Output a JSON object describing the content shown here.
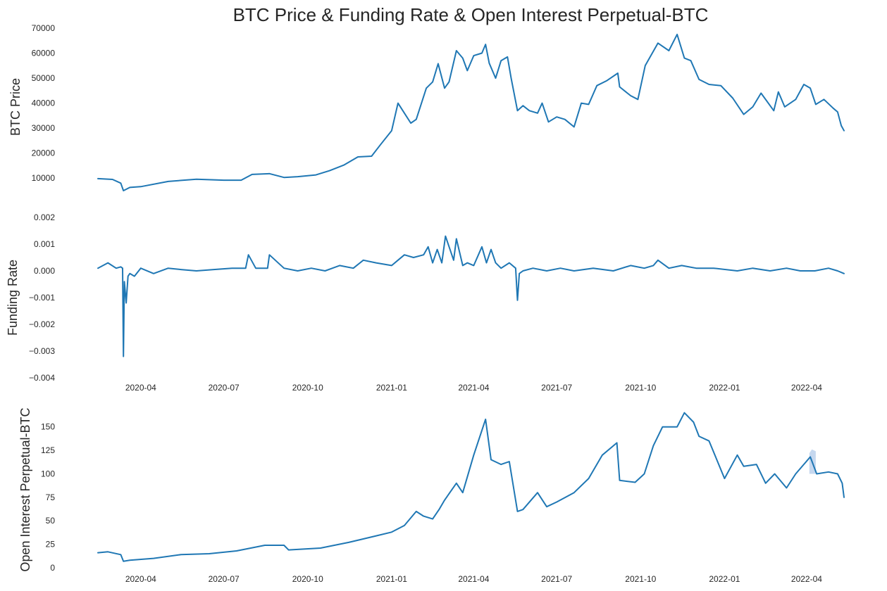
{
  "title": "BTC Price & Funding Rate & Open Interest Perpetual-BTC",
  "colors": {
    "line": "#1f77b4",
    "band": "#aec7e8",
    "text": "#262626",
    "background": "#ffffff"
  },
  "x_axis": {
    "range": [
      "2020-02-14",
      "2022-05-12"
    ],
    "ticks": [
      "2020-04",
      "2020-07",
      "2020-10",
      "2021-01",
      "2021-04",
      "2021-07",
      "2021-10",
      "2022-01",
      "2022-04"
    ]
  },
  "chart_data": [
    {
      "type": "line",
      "ylabel": "BTC  Price",
      "xlabel": "",
      "ylim": [
        5000,
        70000
      ],
      "yticks": [
        "10000",
        "20000",
        "30000",
        "40000",
        "50000",
        "60000",
        "70000"
      ],
      "show_x_ticks": false,
      "grid": false,
      "series": [
        {
          "x": [
            "2020-02-14",
            "2020-03-01",
            "2020-03-10",
            "2020-03-13",
            "2020-03-20",
            "2020-04-01",
            "2020-05-01",
            "2020-06-01",
            "2020-07-01",
            "2020-07-20",
            "2020-08-01",
            "2020-08-20",
            "2020-09-05",
            "2020-09-20",
            "2020-10-10",
            "2020-10-25",
            "2020-11-10",
            "2020-11-25",
            "2020-12-10",
            "2020-12-20",
            "2021-01-01",
            "2021-01-08",
            "2021-01-15",
            "2021-01-22",
            "2021-01-28",
            "2021-02-08",
            "2021-02-15",
            "2021-02-21",
            "2021-02-28",
            "2021-03-05",
            "2021-03-13",
            "2021-03-20",
            "2021-03-25",
            "2021-04-01",
            "2021-04-10",
            "2021-04-14",
            "2021-04-18",
            "2021-04-25",
            "2021-05-01",
            "2021-05-08",
            "2021-05-12",
            "2021-05-19",
            "2021-05-25",
            "2021-06-01",
            "2021-06-10",
            "2021-06-15",
            "2021-06-22",
            "2021-07-01",
            "2021-07-10",
            "2021-07-20",
            "2021-07-28",
            "2021-08-05",
            "2021-08-14",
            "2021-08-25",
            "2021-09-06",
            "2021-09-08",
            "2021-09-20",
            "2021-09-28",
            "2021-10-06",
            "2021-10-20",
            "2021-11-01",
            "2021-11-10",
            "2021-11-18",
            "2021-11-25",
            "2021-12-04",
            "2021-12-15",
            "2021-12-28",
            "2022-01-10",
            "2022-01-22",
            "2022-02-01",
            "2022-02-10",
            "2022-02-24",
            "2022-03-01",
            "2022-03-08",
            "2022-03-20",
            "2022-03-29",
            "2022-04-05",
            "2022-04-11",
            "2022-04-20",
            "2022-04-30",
            "2022-05-05",
            "2022-05-09",
            "2022-05-12"
          ],
          "y": [
            9800,
            9500,
            8000,
            5000,
            6300,
            6600,
            8700,
            9600,
            9200,
            9200,
            11500,
            11800,
            10300,
            10600,
            11300,
            13000,
            15300,
            18500,
            18800,
            23500,
            29000,
            40000,
            36000,
            32000,
            33500,
            46000,
            48500,
            55800,
            46000,
            48500,
            61000,
            58000,
            53000,
            59000,
            60000,
            63500,
            56000,
            50000,
            57000,
            58500,
            50000,
            37000,
            39000,
            37000,
            36000,
            40000,
            32500,
            34500,
            33500,
            30500,
            40000,
            39500,
            47000,
            49000,
            52000,
            46500,
            43000,
            41500,
            55000,
            64000,
            61000,
            67500,
            58000,
            57000,
            49500,
            47500,
            47000,
            42000,
            35500,
            38500,
            44000,
            37000,
            44500,
            38500,
            41500,
            47500,
            46000,
            39500,
            41500,
            38000,
            36500,
            31000,
            29000
          ]
        }
      ]
    },
    {
      "type": "line",
      "ylabel": "Funding Rate",
      "xlabel": "",
      "ylim": [
        -0.004,
        0.002
      ],
      "yticks": [
        "−0.004",
        "−0.003",
        "−0.002",
        "−0.001",
        "0.000",
        "0.001",
        "0.002"
      ],
      "show_x_ticks": true,
      "grid": false,
      "series": [
        {
          "x": [
            "2020-02-14",
            "2020-02-25",
            "2020-03-05",
            "2020-03-10",
            "2020-03-12",
            "2020-03-13",
            "2020-03-14",
            "2020-03-16",
            "2020-03-18",
            "2020-03-20",
            "2020-03-25",
            "2020-04-01",
            "2020-04-15",
            "2020-05-01",
            "2020-05-15",
            "2020-06-01",
            "2020-06-20",
            "2020-07-10",
            "2020-07-25",
            "2020-07-28",
            "2020-08-05",
            "2020-08-18",
            "2020-08-20",
            "2020-09-05",
            "2020-09-20",
            "2020-10-05",
            "2020-10-20",
            "2020-11-05",
            "2020-11-20",
            "2020-12-01",
            "2020-12-15",
            "2021-01-01",
            "2021-01-08",
            "2021-01-15",
            "2021-01-25",
            "2021-02-05",
            "2021-02-10",
            "2021-02-15",
            "2021-02-20",
            "2021-02-25",
            "2021-03-01",
            "2021-03-10",
            "2021-03-13",
            "2021-03-20",
            "2021-03-25",
            "2021-04-01",
            "2021-04-10",
            "2021-04-15",
            "2021-04-20",
            "2021-04-25",
            "2021-05-01",
            "2021-05-10",
            "2021-05-17",
            "2021-05-19",
            "2021-05-21",
            "2021-05-25",
            "2021-06-05",
            "2021-06-20",
            "2021-07-05",
            "2021-07-20",
            "2021-08-10",
            "2021-09-01",
            "2021-09-20",
            "2021-10-05",
            "2021-10-15",
            "2021-10-20",
            "2021-11-01",
            "2021-11-15",
            "2021-12-01",
            "2021-12-20",
            "2022-01-15",
            "2022-02-01",
            "2022-02-20",
            "2022-03-10",
            "2022-03-25",
            "2022-04-10",
            "2022-04-25",
            "2022-05-05",
            "2022-05-12"
          ],
          "y": [
            0.0001,
            0.0003,
            0.0001,
            0.00015,
            0.0001,
            -0.0032,
            -0.0004,
            -0.0012,
            -0.0002,
            -0.0001,
            -0.0002,
            0.0001,
            -0.0001,
            0.0001,
            5e-05,
            0.0,
            5e-05,
            0.0001,
            0.0001,
            0.0006,
            0.0001,
            0.0001,
            0.0006,
            0.0001,
            0.0,
            0.0001,
            0.0,
            0.0002,
            0.0001,
            0.0004,
            0.0003,
            0.0002,
            0.0004,
            0.0006,
            0.0005,
            0.0006,
            0.0009,
            0.0003,
            0.0008,
            0.0003,
            0.0013,
            0.0004,
            0.0012,
            0.0002,
            0.0003,
            0.0002,
            0.0009,
            0.0003,
            0.0008,
            0.0003,
            0.0001,
            0.0003,
            0.0001,
            -0.0011,
            -0.0001,
            0.0,
            0.0001,
            0.0,
            0.0001,
            0.0,
            0.0001,
            0.0,
            0.0002,
            0.0001,
            0.0002,
            0.0004,
            0.0001,
            0.0002,
            0.0001,
            0.0001,
            0.0,
            0.0001,
            0.0,
            0.0001,
            0.0,
            0.0,
            0.0001,
            0.0,
            -0.0001
          ]
        }
      ]
    },
    {
      "type": "line",
      "ylabel": "Open Interest Perpetual-BTC",
      "xlabel": "",
      "ylim": [
        0,
        170
      ],
      "yticks": [
        "0",
        "25",
        "50",
        "75",
        "100",
        "125",
        "150"
      ],
      "show_x_ticks": true,
      "grid": false,
      "band": {
        "from": "2022-04-04",
        "to": "2022-04-11",
        "low": 100,
        "high": 126
      },
      "series": [
        {
          "x": [
            "2020-02-14",
            "2020-02-25",
            "2020-03-10",
            "2020-03-13",
            "2020-03-20",
            "2020-04-15",
            "2020-05-15",
            "2020-06-15",
            "2020-07-15",
            "2020-08-15",
            "2020-09-05",
            "2020-09-10",
            "2020-10-15",
            "2020-11-15",
            "2020-12-15",
            "2021-01-01",
            "2021-01-15",
            "2021-01-28",
            "2021-02-05",
            "2021-02-15",
            "2021-02-22",
            "2021-02-28",
            "2021-03-13",
            "2021-03-20",
            "2021-04-01",
            "2021-04-14",
            "2021-04-20",
            "2021-05-01",
            "2021-05-10",
            "2021-05-19",
            "2021-05-25",
            "2021-06-10",
            "2021-06-20",
            "2021-07-01",
            "2021-07-20",
            "2021-08-05",
            "2021-08-20",
            "2021-09-05",
            "2021-09-08",
            "2021-09-25",
            "2021-10-05",
            "2021-10-15",
            "2021-10-25",
            "2021-11-10",
            "2021-11-18",
            "2021-11-28",
            "2021-12-04",
            "2021-12-15",
            "2022-01-01",
            "2022-01-15",
            "2022-01-22",
            "2022-02-05",
            "2022-02-15",
            "2022-02-25",
            "2022-03-10",
            "2022-03-20",
            "2022-04-05",
            "2022-04-12",
            "2022-04-25",
            "2022-05-05",
            "2022-05-10",
            "2022-05-12"
          ],
          "y": [
            16,
            17,
            14,
            7,
            8,
            10,
            14,
            15,
            18,
            24,
            24,
            19,
            21,
            27,
            34,
            38,
            45,
            60,
            55,
            52,
            62,
            72,
            90,
            80,
            120,
            158,
            115,
            110,
            113,
            60,
            62,
            80,
            65,
            70,
            80,
            95,
            120,
            133,
            93,
            91,
            100,
            130,
            150,
            150,
            165,
            155,
            140,
            135,
            95,
            120,
            108,
            110,
            90,
            100,
            85,
            100,
            118,
            100,
            102,
            100,
            90,
            75
          ]
        }
      ]
    }
  ]
}
